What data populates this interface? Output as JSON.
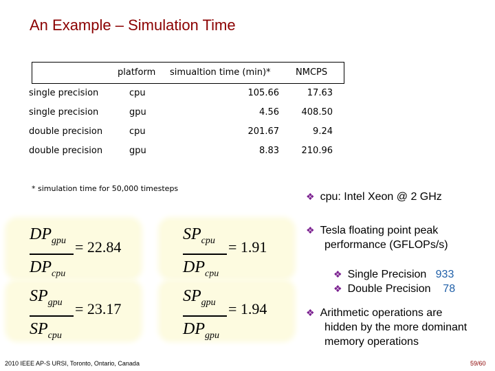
{
  "title": "An Example – Simulation Time",
  "table": {
    "headers": [
      "",
      "platform",
      "simualtion time (min)*",
      "NMCPS"
    ],
    "rows": [
      [
        "single precision",
        "cpu",
        "105.66",
        "17.63"
      ],
      [
        "single precision",
        "gpu",
        "4.56",
        "408.50"
      ],
      [
        "double precision",
        "cpu",
        "201.67",
        "9.24"
      ],
      [
        "double precision",
        "gpu",
        "8.83",
        "210.96"
      ]
    ]
  },
  "footnote": "* simulation time for 50,000 timesteps",
  "formulas": [
    {
      "num": "DP",
      "num_sub": "gpu",
      "den": "DP",
      "den_sub": "cpu",
      "value": "= 22.84"
    },
    {
      "num": "SP",
      "num_sub": "cpu",
      "den": "DP",
      "den_sub": "cpu",
      "value": "= 1.91"
    },
    {
      "num": "SP",
      "num_sub": "gpu",
      "den": "SP",
      "den_sub": "cpu",
      "value": "= 23.17"
    },
    {
      "num": "SP",
      "num_sub": "gpu",
      "den": "DP",
      "den_sub": "gpu",
      "value": "= 1.94"
    }
  ],
  "bullets": {
    "cpu": "cpu: Intel Xeon @ 2 GHz",
    "tesla_line1": "Tesla floating point peak",
    "tesla_line2": "performance (GFLOPs/s)",
    "single_label": "Single Precision",
    "single_value": "933",
    "double_label": "Double Precision",
    "double_value": "78",
    "arith_line1": "Arithmetic operations are",
    "arith_line2": "hidden by the  more dominant",
    "arith_line3": "memory operations"
  },
  "footer_left": "2010 IEEE AP-S URSI, Toronto, Ontario, Canada",
  "footer_right": "59/60",
  "colors": {
    "title": "#8b0000",
    "bullet": "#7a1f8f",
    "value": "#1f5fa8",
    "box": "#fdfbe0"
  }
}
